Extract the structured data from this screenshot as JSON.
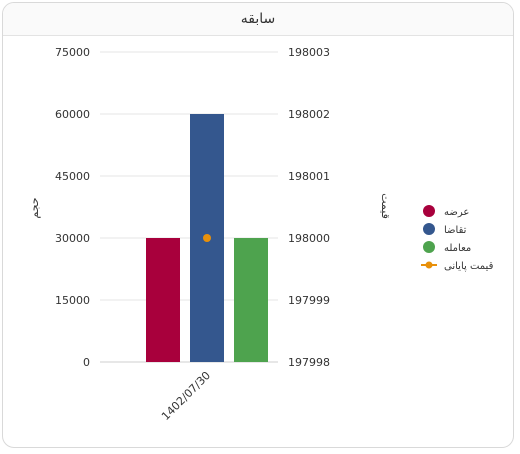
{
  "card": {
    "title": "سابقه"
  },
  "chart_data": {
    "type": "bar",
    "categories": [
      "1402/07/30"
    ],
    "series": [
      {
        "name": "عرضه",
        "kind": "bar",
        "axis": "left",
        "color": "#a8003c",
        "values": [
          30000
        ]
      },
      {
        "name": "تقاضا",
        "kind": "bar",
        "axis": "left",
        "color": "#34578e",
        "values": [
          60000
        ]
      },
      {
        "name": "معامله",
        "kind": "bar",
        "axis": "left",
        "color": "#4ea34e",
        "values": [
          30000
        ]
      },
      {
        "name": "قیمت پایانی",
        "kind": "line",
        "axis": "right",
        "color": "#e8900a",
        "values": [
          198000
        ]
      }
    ],
    "left_axis": {
      "label": "حجم",
      "ticks": [
        "0",
        "15000",
        "30000",
        "45000",
        "60000",
        "75000"
      ],
      "min": 0,
      "max": 75000
    },
    "right_axis": {
      "label": "قیمت",
      "ticks": [
        "197998",
        "197999",
        "198000",
        "198001",
        "198002",
        "198003"
      ],
      "min": 197998,
      "max": 198003
    },
    "grid": true,
    "legend": "right"
  }
}
